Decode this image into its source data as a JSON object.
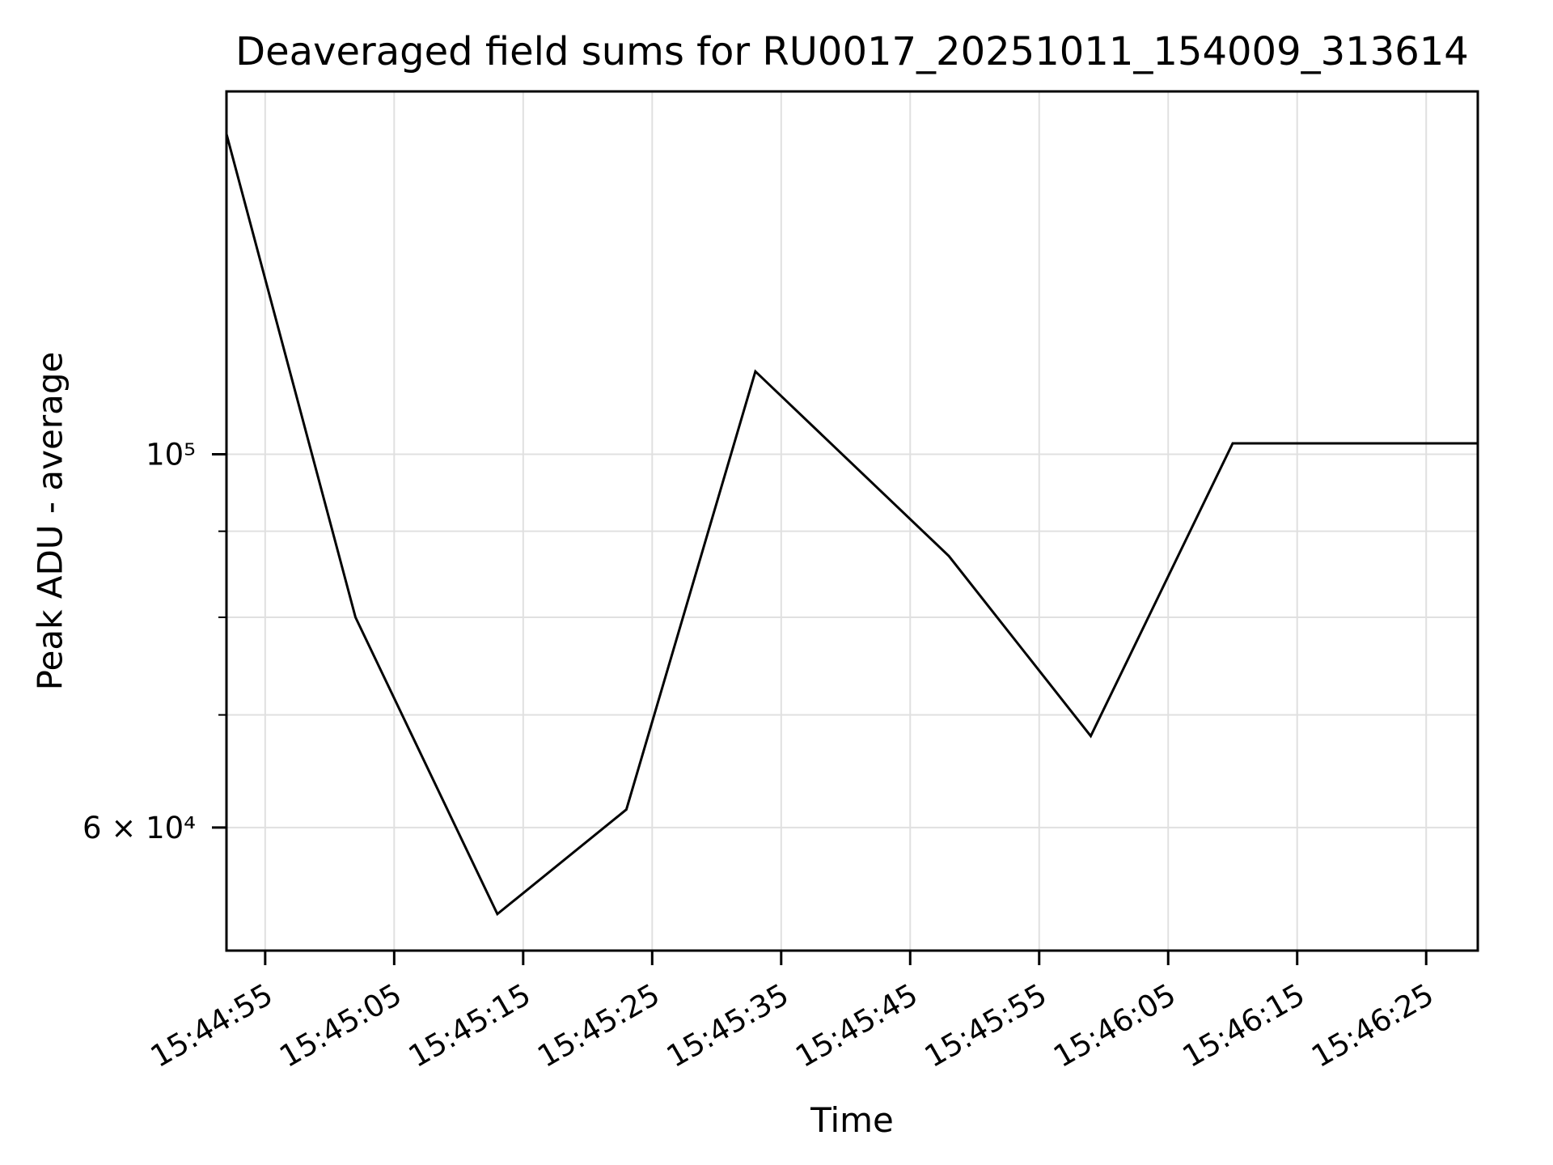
{
  "chart_data": {
    "type": "line",
    "title": "Deaveraged field sums for RU0017_20251011_154009_313614",
    "xlabel": "Time",
    "ylabel": "Peak ADU - average",
    "yscale": "log",
    "grid": true,
    "legend": "none",
    "line_color": "#000000",
    "background_color": "#ffffff",
    "gridline_color": "#e0e0e0",
    "x": [
      "15:44:52",
      "15:45:02",
      "15:45:13",
      "15:45:23",
      "15:45:33",
      "15:45:48",
      "15:45:59",
      "15:46:10",
      "15:46:29"
    ],
    "y": [
      155000,
      80000,
      53300,
      61500,
      112000,
      87000,
      68000,
      101500,
      101500
    ],
    "x_ticks": [
      "15:44:55",
      "15:45:05",
      "15:45:15",
      "15:45:25",
      "15:45:35",
      "15:45:45",
      "15:45:55",
      "15:46:05",
      "15:46:15",
      "15:46:25"
    ],
    "x_tick_rotation_deg": 30,
    "y_ticks": [
      {
        "value": 100000,
        "label": "10⁵"
      },
      {
        "value": 60000,
        "label": "6 × 10⁴"
      }
    ],
    "y_minor_gridlines": [
      60000,
      70000,
      80000,
      90000,
      100000
    ],
    "ylim": [
      50700,
      164300
    ]
  }
}
